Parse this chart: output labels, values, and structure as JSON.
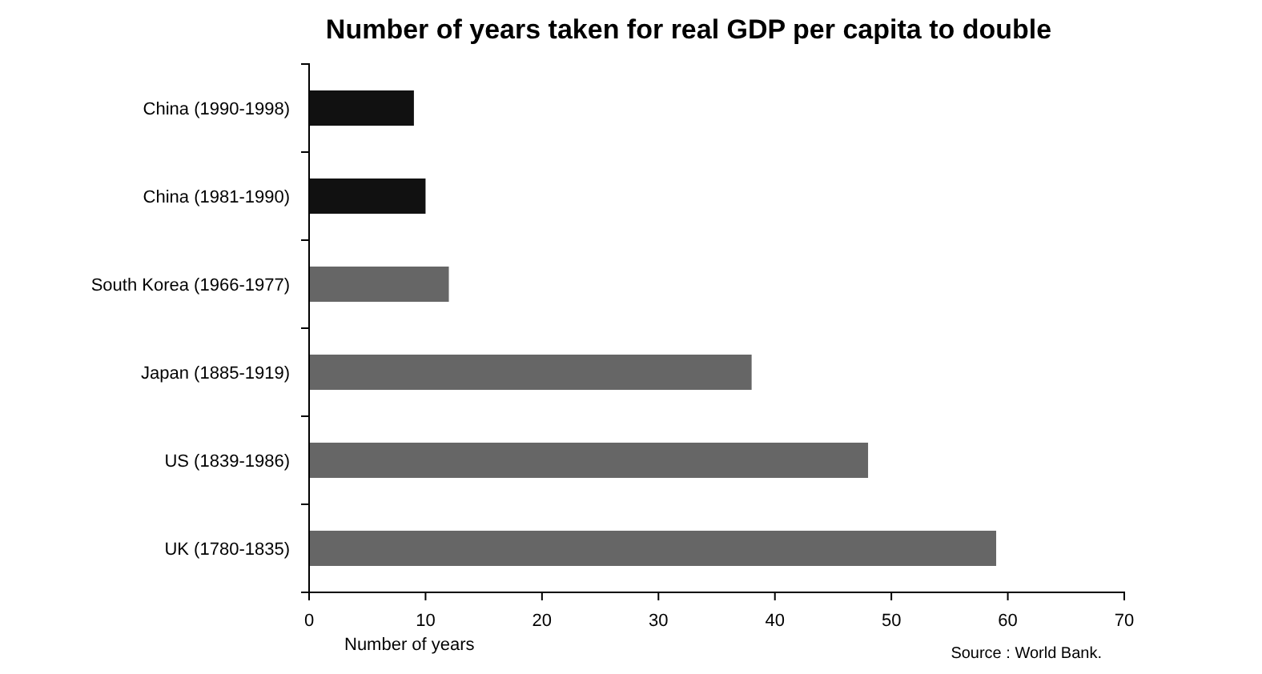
{
  "chart_data": {
    "type": "bar",
    "orientation": "horizontal",
    "title": "Number of years taken for real GDP per capita to double",
    "categories": [
      "China (1990-1998)",
      "China (1981-1990)",
      "South Korea (1966-1977)",
      "Japan (1885-1919)",
      "US (1839-1986)",
      "UK (1780-1835)"
    ],
    "values": [
      9,
      10,
      12,
      38,
      48,
      59
    ],
    "colors": [
      "#111111",
      "#111111",
      "#666666",
      "#666666",
      "#666666",
      "#666666"
    ],
    "xlim": [
      0,
      70
    ],
    "xticks": [
      0,
      10,
      20,
      30,
      40,
      50,
      60,
      70
    ],
    "xlabel": "Number of years",
    "annotations": [
      "Source :  World Bank."
    ],
    "grid": false
  }
}
